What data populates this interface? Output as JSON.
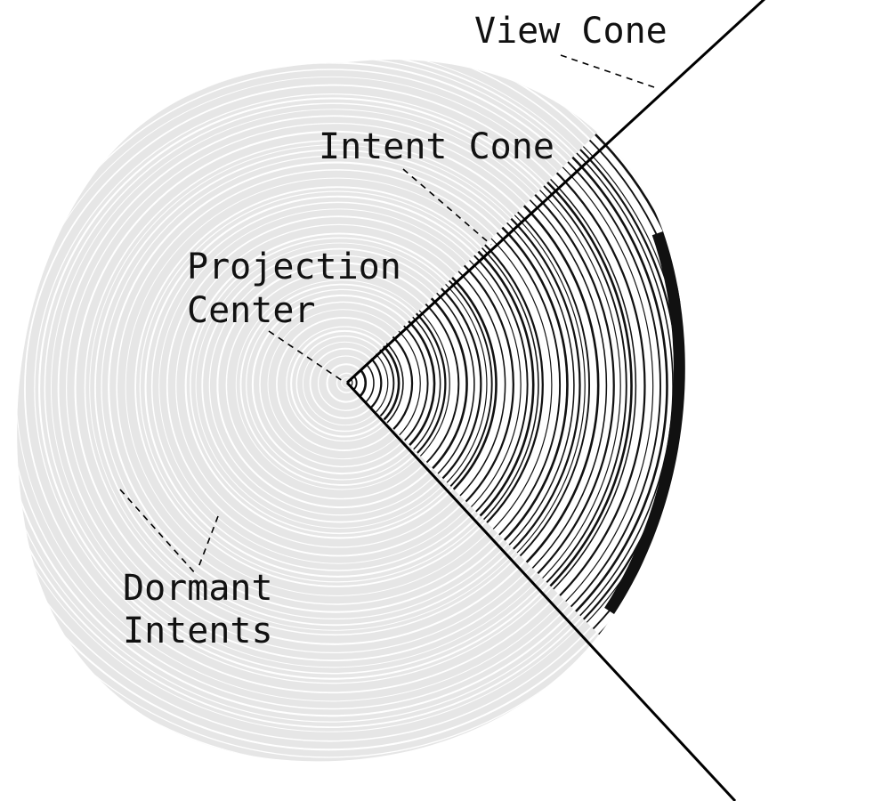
{
  "labels": {
    "view_cone": "View Cone",
    "intent_cone": "Intent Cone",
    "projection_center_line1": "Projection",
    "projection_center_line2": "Center",
    "dormant_intents_line1": "Dormant",
    "dormant_intents_line2": "Intents"
  },
  "colors": {
    "dormant_fill": "#e6e6e6",
    "dormant_rings": "#ffffff",
    "cone_fill": "#ffffff",
    "cone_rings": "#111111",
    "lines": "#000000"
  }
}
